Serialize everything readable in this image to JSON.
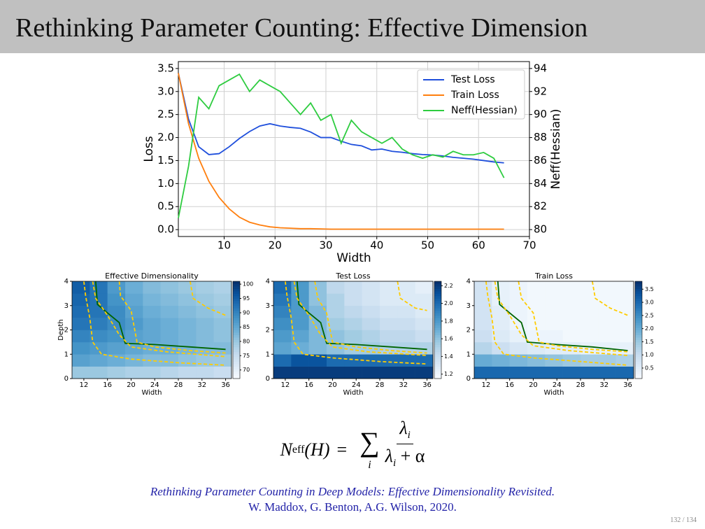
{
  "slide": {
    "title": "Rethinking Parameter Counting: Effective Dimension"
  },
  "chart_data": [
    {
      "type": "line",
      "xlabel": "Width",
      "ylabel": "Loss",
      "y2label": "Neff(Hessian)",
      "x": [
        1,
        3,
        5,
        7,
        9,
        11,
        13,
        15,
        17,
        19,
        21,
        23,
        25,
        27,
        29,
        31,
        33,
        35,
        37,
        39,
        41,
        43,
        45,
        47,
        49,
        51,
        53,
        55,
        57,
        59,
        61,
        63,
        65
      ],
      "series": [
        {
          "name": "Test Loss",
          "color": "#1f4fdc",
          "values": [
            3.4,
            2.4,
            1.8,
            1.63,
            1.65,
            1.8,
            1.98,
            2.13,
            2.25,
            2.3,
            2.25,
            2.22,
            2.2,
            2.12,
            2.0,
            2.0,
            1.92,
            1.85,
            1.82,
            1.73,
            1.75,
            1.7,
            1.68,
            1.65,
            1.63,
            1.62,
            1.6,
            1.57,
            1.55,
            1.53,
            1.5,
            1.47,
            1.45
          ]
        },
        {
          "name": "Train Loss",
          "color": "#ff7f0e",
          "values": [
            3.4,
            2.3,
            1.55,
            1.05,
            0.7,
            0.45,
            0.27,
            0.16,
            0.1,
            0.06,
            0.04,
            0.03,
            0.02,
            0.02,
            0.015,
            0.01,
            0.01,
            0.01,
            0.01,
            0.01,
            0.01,
            0.01,
            0.01,
            0.01,
            0.01,
            0.01,
            0.01,
            0.01,
            0.01,
            0.01,
            0.01,
            0.01,
            0.01
          ]
        },
        {
          "name": "Neff(Hessian)",
          "color": "#2ecc40",
          "axis": "y2",
          "values": [
            81,
            85.5,
            91.5,
            90.5,
            92.5,
            93,
            93.5,
            92,
            93,
            92.5,
            92,
            91,
            90,
            91,
            89.5,
            90,
            87.5,
            89.5,
            88.5,
            88,
            87.5,
            88,
            87,
            86.5,
            86.2,
            86.5,
            86.3,
            86.8,
            86.5,
            86.5,
            86.7,
            86.2,
            84.5
          ]
        }
      ],
      "xlim": [
        1,
        70
      ],
      "xticks": [
        10,
        20,
        30,
        40,
        50,
        60,
        70
      ],
      "ylim": [
        -0.15,
        3.65
      ],
      "yticks": [
        {
          "value": 0,
          "label": "0.0"
        },
        0.5,
        {
          "value": 1,
          "label": "1.0"
        },
        1.5,
        {
          "value": 2,
          "label": "2.0"
        },
        2.5,
        {
          "value": 3,
          "label": "3.0"
        },
        3.5
      ],
      "y2lim": [
        79.4,
        94.6
      ],
      "y2ticks": [
        80,
        82,
        84,
        86,
        88,
        90,
        92,
        94
      ],
      "grid": true,
      "legend": "upper right"
    },
    {
      "type": "heatmap",
      "title": "Effective Dimensionality",
      "xlabel": "Width",
      "ylabel": "Depth",
      "colormap": "Blues",
      "x_edges": [
        10,
        13,
        16,
        19,
        22,
        25,
        28,
        31,
        34,
        37
      ],
      "y_edges": [
        0,
        0.5,
        1,
        1.5,
        2,
        2.5,
        3,
        3.5,
        4
      ],
      "values": [
        [
          80,
          80,
          79,
          78,
          78,
          77,
          76,
          76,
          75
        ],
        [
          86,
          85,
          84,
          83,
          82,
          82,
          81,
          80,
          80
        ],
        [
          88,
          87,
          86,
          85,
          84,
          84,
          83,
          82,
          82
        ],
        [
          90,
          89,
          88,
          86,
          85,
          84,
          83,
          82,
          81
        ],
        [
          92,
          91,
          89,
          87,
          85,
          84,
          83,
          82,
          81
        ],
        [
          93,
          92,
          89,
          86,
          84,
          83,
          82,
          81,
          80
        ],
        [
          94,
          92,
          88,
          85,
          83,
          82,
          81,
          80,
          79
        ],
        [
          95,
          92,
          87,
          84,
          82,
          81,
          80,
          79,
          78
        ]
      ],
      "xlim": [
        10,
        37
      ],
      "xticks": [
        12,
        16,
        20,
        24,
        28,
        32,
        36
      ],
      "ylim": [
        0,
        4
      ],
      "yticks": [
        0,
        1,
        2,
        3,
        4
      ],
      "clim": [
        67,
        101
      ],
      "cticks": [
        70,
        75,
        80,
        85,
        90,
        95,
        100
      ],
      "contours": [
        {
          "color": "#006400",
          "style": "solid",
          "x": [
            14,
            14.3,
            16,
            18,
            19,
            24,
            30,
            36
          ],
          "y": [
            4,
            3.05,
            2.7,
            2.3,
            1.45,
            1.4,
            1.3,
            1.2
          ]
        },
        {
          "color": "#ffcc00",
          "style": "dashed",
          "x": [
            12,
            12.3,
            13,
            13.5,
            15,
            20,
            28,
            36
          ],
          "y": [
            4,
            3.4,
            2.5,
            1.5,
            1.0,
            0.8,
            0.65,
            0.55
          ]
        },
        {
          "color": "#ffcc00",
          "style": "dashed",
          "x": [
            13.5,
            14,
            16,
            18,
            20,
            26,
            36
          ],
          "y": [
            4,
            3.3,
            2.6,
            1.8,
            1.3,
            1.1,
            0.9
          ]
        },
        {
          "color": "#ffcc00",
          "style": "dashed",
          "x": [
            18,
            18.2,
            20,
            21,
            24,
            30,
            36
          ],
          "y": [
            4,
            3.4,
            2.8,
            1.5,
            1.3,
            1.15,
            1.05
          ]
        },
        {
          "color": "#ffcc00",
          "style": "dashed",
          "x": [
            30,
            30.5,
            33,
            36
          ],
          "y": [
            4,
            3.3,
            2.9,
            2.6
          ]
        }
      ]
    },
    {
      "type": "heatmap",
      "title": "Test Loss",
      "xlabel": "Width",
      "colormap": "Blues",
      "x_edges": [
        10,
        13,
        16,
        19,
        22,
        25,
        28,
        31,
        34,
        37
      ],
      "y_edges": [
        0,
        0.5,
        1,
        1.5,
        2,
        2.5,
        3,
        3.5,
        4
      ],
      "values": [
        [
          2.2,
          2.2,
          2.2,
          2.2,
          2.2,
          2.2,
          2.2,
          2.2,
          2.2
        ],
        [
          2.0,
          2.1,
          2.1,
          2.0,
          2.0,
          2.0,
          2.0,
          2.0,
          2.0
        ],
        [
          1.75,
          1.7,
          1.65,
          1.6,
          1.55,
          1.55,
          1.5,
          1.5,
          1.5
        ],
        [
          1.8,
          1.75,
          1.65,
          1.6,
          1.55,
          1.5,
          1.45,
          1.45,
          1.4
        ],
        [
          1.85,
          1.8,
          1.65,
          1.55,
          1.5,
          1.45,
          1.4,
          1.4,
          1.35
        ],
        [
          1.9,
          1.8,
          1.65,
          1.5,
          1.45,
          1.4,
          1.35,
          1.35,
          1.3
        ],
        [
          1.95,
          1.8,
          1.6,
          1.5,
          1.4,
          1.35,
          1.3,
          1.3,
          1.3
        ],
        [
          2.0,
          1.8,
          1.6,
          1.45,
          1.4,
          1.35,
          1.3,
          1.3,
          1.25
        ]
      ],
      "xlim": [
        10,
        37
      ],
      "xticks": [
        12,
        16,
        20,
        24,
        28,
        32,
        36
      ],
      "ylim": [
        0,
        4
      ],
      "yticks": [
        0,
        1,
        2,
        3,
        4
      ],
      "clim": [
        1.15,
        2.25
      ],
      "cticks": [
        1.2,
        1.4,
        1.6,
        1.8,
        {
          "value": 2,
          "label": "2.0"
        },
        2.2
      ],
      "contours": [
        {
          "color": "#006400",
          "style": "solid",
          "x": [
            14,
            14.3,
            16,
            18,
            19,
            24,
            30,
            36
          ],
          "y": [
            4,
            3.05,
            2.7,
            2.3,
            1.45,
            1.4,
            1.3,
            1.2
          ]
        },
        {
          "color": "#ffcc00",
          "style": "dashed",
          "x": [
            12,
            12.3,
            13,
            13.5,
            15,
            20,
            28,
            36
          ],
          "y": [
            4,
            3.4,
            2.5,
            1.5,
            1.0,
            0.85,
            0.7,
            0.6
          ]
        },
        {
          "color": "#ffcc00",
          "style": "dashed",
          "x": [
            13.5,
            14,
            16,
            18,
            20,
            26,
            36
          ],
          "y": [
            4,
            3.3,
            2.6,
            1.8,
            1.3,
            1.1,
            0.95
          ]
        },
        {
          "color": "#ffcc00",
          "style": "dashed",
          "x": [
            17,
            17.5,
            19,
            20,
            24,
            30,
            36
          ],
          "y": [
            4,
            3.3,
            2.7,
            1.5,
            1.3,
            1.15,
            1.05
          ]
        },
        {
          "color": "#ffcc00",
          "style": "dashed",
          "x": [
            31,
            31.5,
            34,
            36
          ],
          "y": [
            4,
            3.3,
            2.9,
            2.8
          ]
        }
      ]
    },
    {
      "type": "heatmap",
      "title": "Train Loss",
      "xlabel": "Width",
      "colormap": "Blues",
      "x_edges": [
        10,
        13,
        16,
        19,
        22,
        25,
        28,
        31,
        34,
        37
      ],
      "y_edges": [
        0,
        0.5,
        1,
        1.5,
        2,
        2.5,
        3,
        3.5,
        4
      ],
      "values": [
        [
          3.0,
          3.0,
          3.0,
          3.0,
          3.0,
          3.0,
          3.0,
          3.0,
          3.0
        ],
        [
          2.0,
          1.9,
          1.8,
          1.7,
          1.6,
          1.5,
          1.4,
          1.4,
          1.3
        ],
        [
          1.2,
          0.9,
          0.7,
          0.6,
          0.5,
          0.5,
          0.4,
          0.4,
          0.4
        ],
        [
          0.9,
          0.6,
          0.4,
          0.3,
          0.3,
          0.2,
          0.2,
          0.2,
          0.2
        ],
        [
          0.8,
          0.5,
          0.3,
          0.2,
          0.2,
          0.2,
          0.2,
          0.2,
          0.2
        ],
        [
          0.8,
          0.5,
          0.3,
          0.2,
          0.2,
          0.2,
          0.2,
          0.2,
          0.2
        ],
        [
          0.8,
          0.4,
          0.3,
          0.2,
          0.2,
          0.2,
          0.2,
          0.2,
          0.2
        ],
        [
          0.8,
          0.4,
          0.3,
          0.2,
          0.2,
          0.2,
          0.2,
          0.2,
          0.2
        ]
      ],
      "xlim": [
        10,
        37
      ],
      "xticks": [
        12,
        16,
        20,
        24,
        28,
        32,
        36
      ],
      "ylim": [
        0,
        4
      ],
      "yticks": [
        0,
        1,
        2,
        3,
        4
      ],
      "clim": [
        0.1,
        3.8
      ],
      "cticks": [
        0.5,
        {
          "value": 1,
          "label": "1.0"
        },
        1.5,
        {
          "value": 2,
          "label": "2.0"
        },
        2.5,
        {
          "value": 3,
          "label": "3.0"
        },
        3.5
      ],
      "contours": [
        {
          "color": "#006400",
          "style": "solid",
          "x": [
            14,
            14.3,
            16,
            18,
            19,
            24,
            30,
            36
          ],
          "y": [
            4,
            3.05,
            2.7,
            2.3,
            1.5,
            1.4,
            1.3,
            1.15
          ]
        },
        {
          "color": "#ffcc00",
          "style": "dashed",
          "x": [
            12,
            12.3,
            13,
            13.5,
            15,
            20,
            28,
            36
          ],
          "y": [
            4,
            3.4,
            2.5,
            1.5,
            1.0,
            0.85,
            0.7,
            0.55
          ]
        },
        {
          "color": "#ffcc00",
          "style": "dashed",
          "x": [
            13.5,
            14,
            16,
            18,
            20,
            26,
            36
          ],
          "y": [
            4,
            3.3,
            2.6,
            1.8,
            1.35,
            1.15,
            0.95
          ]
        },
        {
          "color": "#ffcc00",
          "style": "dashed",
          "x": [
            17.5,
            18,
            20,
            21,
            24,
            30,
            36
          ],
          "y": [
            4,
            3.3,
            2.7,
            1.5,
            1.35,
            1.2,
            1.1
          ]
        },
        {
          "color": "#ffcc00",
          "style": "dashed",
          "x": [
            30,
            30.5,
            33,
            36
          ],
          "y": [
            4,
            3.3,
            2.9,
            2.6
          ]
        }
      ]
    }
  ],
  "formula": {
    "N": "N",
    "eff": "eff",
    "arg": "(H)",
    "eq": "=",
    "sum": "∑",
    "index": "i",
    "num": "λ",
    "num_sub": "i",
    "den": "λ",
    "den_sub": "i",
    "den_rest": "+ α"
  },
  "citation": {
    "title": "Rethinking Parameter Counting in Deep Models: Effective Dimensionality Revisited.",
    "authors": "W. Maddox, G. Benton, A.G. Wilson, 2020."
  },
  "page": "132 / 134"
}
